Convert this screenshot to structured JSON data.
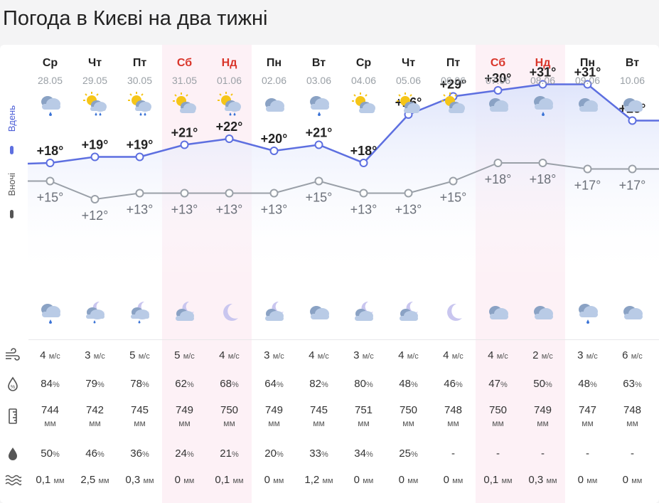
{
  "title": "Погода в Києві на два тижні",
  "labels": {
    "day": "Вдень",
    "night": "Вночі"
  },
  "colors": {
    "day_line": "#5d6fe0",
    "night_line": "#9aa0a8",
    "weekend": "#d9352a",
    "weekend_bg": "#fdf1f6"
  },
  "units": {
    "wind": "м/с",
    "humidity": "%",
    "pressure": "мм",
    "precip_prob": "%",
    "precip": "мм"
  },
  "row_icons": [
    "wind-icon",
    "humidity-icon",
    "pressure-icon",
    "precip-probability-icon",
    "precip-amount-icon"
  ],
  "days": [
    {
      "name": "Ср",
      "date": "28.05",
      "weekend": false,
      "day_icon": "rain-icon",
      "night_icon": "rain-icon",
      "day_temp": 18,
      "night_temp": 15,
      "day_label": "+18°",
      "night_label": "+15°",
      "wind": "4",
      "humidity": "84",
      "pressure": "744",
      "precip_prob": "50",
      "precip": "0,1"
    },
    {
      "name": "Чт",
      "date": "29.05",
      "weekend": false,
      "day_icon": "sun-rain-icon",
      "night_icon": "moon-rain-icon",
      "day_temp": 19,
      "night_temp": 12,
      "day_label": "+19°",
      "night_label": "+12°",
      "wind": "3",
      "humidity": "79",
      "pressure": "742",
      "precip_prob": "46",
      "precip": "2,5"
    },
    {
      "name": "Пт",
      "date": "30.05",
      "weekend": false,
      "day_icon": "sun-rain-icon",
      "night_icon": "moon-rain-icon",
      "day_temp": 19,
      "night_temp": 13,
      "day_label": "+19°",
      "night_label": "+13°",
      "wind": "5",
      "humidity": "78",
      "pressure": "745",
      "precip_prob": "36",
      "precip": "0,3"
    },
    {
      "name": "Сб",
      "date": "31.05",
      "weekend": true,
      "day_icon": "sun-cloud-icon",
      "night_icon": "moon-cloud-icon",
      "day_temp": 21,
      "night_temp": 13,
      "day_label": "+21°",
      "night_label": "+13°",
      "wind": "5",
      "humidity": "62",
      "pressure": "749",
      "precip_prob": "24",
      "precip": "0"
    },
    {
      "name": "Нд",
      "date": "01.06",
      "weekend": true,
      "day_icon": "sun-rain-icon",
      "night_icon": "moon-icon",
      "day_temp": 22,
      "night_temp": 13,
      "day_label": "+22°",
      "night_label": "+13°",
      "wind": "4",
      "humidity": "68",
      "pressure": "750",
      "precip_prob": "21",
      "precip": "0,1"
    },
    {
      "name": "Пн",
      "date": "02.06",
      "weekend": false,
      "day_icon": "cloud-icon",
      "night_icon": "moon-cloud-icon",
      "day_temp": 20,
      "night_temp": 13,
      "day_label": "+20°",
      "night_label": "+13°",
      "wind": "3",
      "humidity": "64",
      "pressure": "749",
      "precip_prob": "20",
      "precip": "0"
    },
    {
      "name": "Вт",
      "date": "03.06",
      "weekend": false,
      "day_icon": "rain-icon",
      "night_icon": "cloud-icon",
      "day_temp": 21,
      "night_temp": 15,
      "day_label": "+21°",
      "night_label": "+15°",
      "wind": "4",
      "humidity": "82",
      "pressure": "745",
      "precip_prob": "33",
      "precip": "1,2"
    },
    {
      "name": "Ср",
      "date": "04.06",
      "weekend": false,
      "day_icon": "sun-cloud-icon",
      "night_icon": "moon-cloud-icon",
      "day_temp": 18,
      "night_temp": 13,
      "day_label": "+18°",
      "night_label": "+13°",
      "wind": "3",
      "humidity": "80",
      "pressure": "751",
      "precip_prob": "34",
      "precip": "0"
    },
    {
      "name": "Чт",
      "date": "05.06",
      "weekend": false,
      "day_icon": "sun-cloud-icon",
      "night_icon": "moon-cloud-icon",
      "day_temp": 26,
      "night_temp": 13,
      "day_label": "+26°",
      "night_label": "+13°",
      "wind": "4",
      "humidity": "48",
      "pressure": "750",
      "precip_prob": "25",
      "precip": "0"
    },
    {
      "name": "Пт",
      "date": "06.06",
      "weekend": false,
      "day_icon": "sun-cloud-icon",
      "night_icon": "moon-icon",
      "day_temp": 29,
      "night_temp": 15,
      "day_label": "+29°",
      "night_label": "+15°",
      "wind": "4",
      "humidity": "46",
      "pressure": "748",
      "precip_prob": "-",
      "precip": "0"
    },
    {
      "name": "Сб",
      "date": "07.06",
      "weekend": true,
      "day_icon": "cloud-icon",
      "night_icon": "cloud-icon",
      "day_temp": 30,
      "night_temp": 18,
      "day_label": "+30°",
      "night_label": "+18°",
      "wind": "4",
      "humidity": "47",
      "pressure": "750",
      "precip_prob": "-",
      "precip": "0,1"
    },
    {
      "name": "Нд",
      "date": "08.06",
      "weekend": true,
      "day_icon": "rain-icon",
      "night_icon": "cloud-icon",
      "day_temp": 31,
      "night_temp": 18,
      "day_label": "+31°",
      "night_label": "+18°",
      "wind": "2",
      "humidity": "50",
      "pressure": "749",
      "precip_prob": "-",
      "precip": "0,3"
    },
    {
      "name": "Пн",
      "date": "09.06",
      "weekend": false,
      "day_icon": "cloud-icon",
      "night_icon": "rain-icon",
      "day_temp": 31,
      "night_temp": 17,
      "day_label": "+31°",
      "night_label": "+17°",
      "wind": "3",
      "humidity": "48",
      "pressure": "747",
      "precip_prob": "-",
      "precip": "0"
    },
    {
      "name": "Вт",
      "date": "10.06",
      "weekend": false,
      "day_icon": "cloud-icon",
      "night_icon": "cloud-icon",
      "day_temp": 25,
      "night_temp": 17,
      "day_label": "+25°",
      "night_label": "+17°",
      "wind": "6",
      "humidity": "63",
      "pressure": "748",
      "precip_prob": "-",
      "precip": "0"
    }
  ]
}
